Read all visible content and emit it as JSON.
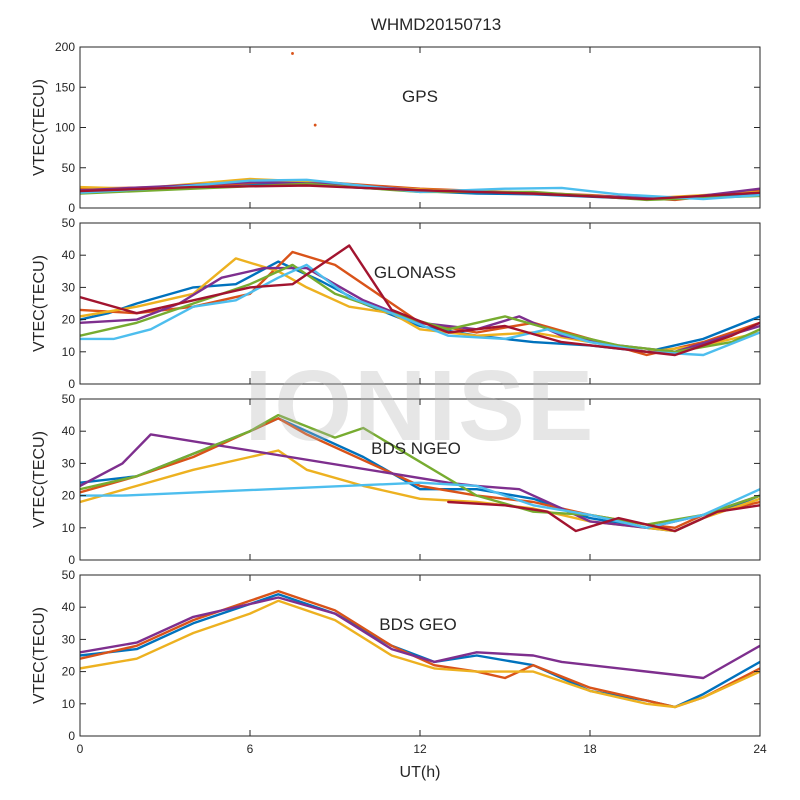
{
  "chart_data": {
    "type": "line",
    "title": "WHMD20150713",
    "xlabel": "UT(h)",
    "xlim": [
      0,
      24
    ],
    "xticks": [
      0,
      6,
      12,
      18,
      24
    ],
    "watermark": "IONISE",
    "colors": [
      "#0072BD",
      "#D95319",
      "#EDB120",
      "#7E2F8E",
      "#77AC30",
      "#4DBEEE",
      "#A2142F"
    ],
    "panels": [
      {
        "label": "GPS",
        "ylabel": "VTEC(TECU)",
        "ylim": [
          0,
          200
        ],
        "yticks": [
          0,
          50,
          100,
          150,
          200
        ],
        "outliers": [
          {
            "x": 7.5,
            "y": 192
          },
          {
            "x": 8.3,
            "y": 103
          }
        ],
        "series": [
          {
            "color": 0,
            "x": [
              0,
              2,
              4,
              6,
              8,
              10,
              12,
              14,
              16,
              18,
              20,
              22,
              24
            ],
            "y": [
              20,
              22,
              27,
              30,
              29,
              25,
              21,
              18,
              17,
              14,
              11,
              13,
              18
            ]
          },
          {
            "color": 1,
            "x": [
              0,
              3,
              5,
              7,
              9,
              12,
              15,
              18,
              21,
              24
            ],
            "y": [
              24,
              26,
              29,
              33,
              31,
              24,
              20,
              16,
              10,
              22
            ]
          },
          {
            "color": 2,
            "x": [
              0,
              2,
              4,
              6,
              8,
              10,
              12,
              16,
              20,
              24
            ],
            "y": [
              26,
              24,
              30,
              36,
              33,
              27,
              23,
              18,
              12,
              20
            ]
          },
          {
            "color": 3,
            "x": [
              0,
              3,
              6,
              9,
              12,
              15,
              18,
              21,
              24
            ],
            "y": [
              22,
              27,
              32,
              30,
              22,
              19,
              15,
              11,
              24
            ]
          },
          {
            "color": 4,
            "x": [
              0,
              4,
              8,
              12,
              16,
              20,
              24
            ],
            "y": [
              18,
              24,
              30,
              20,
              20,
              10,
              15
            ]
          },
          {
            "color": 5,
            "x": [
              0,
              3,
              6,
              8,
              12,
              15,
              17,
              19,
              22,
              24
            ],
            "y": [
              19,
              25,
              34,
              35,
              20,
              24,
              25,
              17,
              11,
              16
            ]
          },
          {
            "color": 6,
            "x": [
              0,
              4,
              8,
              12,
              16,
              20,
              24
            ],
            "y": [
              21,
              26,
              28,
              22,
              18,
              11,
              19
            ]
          }
        ]
      },
      {
        "label": "GLONASS",
        "ylabel": "VTEC(TECU)",
        "ylim": [
          0,
          50
        ],
        "yticks": [
          0,
          10,
          20,
          30,
          40,
          50
        ],
        "series": [
          {
            "color": 0,
            "x": [
              0,
              1,
              2,
              4,
              5.5,
              7,
              8.5,
              10,
              12,
              14,
              16,
              18,
              20,
              22,
              24
            ],
            "y": [
              20,
              22,
              25,
              30,
              31,
              38,
              32,
              25,
              18,
              15,
              13,
              12,
              10,
              14,
              21
            ]
          },
          {
            "color": 1,
            "x": [
              0,
              2,
              4,
              6,
              7.5,
              9,
              10.5,
              12,
              14,
              16,
              18,
              20,
              22,
              24
            ],
            "y": [
              23,
              22,
              24,
              28,
              41,
              37,
              28,
              19,
              16,
              19,
              14,
              9,
              13,
              19
            ]
          },
          {
            "color": 2,
            "x": [
              0,
              2,
              4,
              5.5,
              7,
              8,
              9.5,
              11,
              12,
              14,
              16,
              18,
              20,
              22,
              24
            ],
            "y": [
              21,
              24,
              28,
              39,
              35,
              30,
              24,
              22,
              17,
              15,
              16,
              13,
              10,
              12,
              16
            ]
          },
          {
            "color": 3,
            "x": [
              0,
              2,
              3.5,
              5,
              6.5,
              8,
              10,
              12,
              14,
              15.5,
              17,
              19,
              21,
              22.5,
              24
            ],
            "y": [
              19,
              20,
              25,
              33,
              36,
              36,
              26,
              19,
              17,
              21,
              15,
              12,
              10,
              14,
              18
            ]
          },
          {
            "color": 4,
            "x": [
              0,
              2,
              4,
              6,
              7.5,
              9,
              11,
              13,
              15,
              17,
              19,
              21,
              23,
              24
            ],
            "y": [
              15,
              19,
              25,
              31,
              37,
              28,
              22,
              17,
              21,
              16,
              12,
              10,
              13,
              17
            ]
          },
          {
            "color": 5,
            "x": [
              0,
              1.2,
              2.5,
              4,
              5.5,
              7,
              8,
              9.5,
              11,
              13,
              15,
              16.5,
              18,
              20,
              22,
              24
            ],
            "y": [
              14,
              14,
              17,
              24,
              26,
              33,
              37,
              27,
              22,
              15,
              14,
              17,
              13,
              10,
              9,
              16
            ]
          },
          {
            "color": 6,
            "x": [
              0,
              2,
              4,
              6,
              7.5,
              9.5,
              11,
              13,
              15,
              17,
              19,
              21,
              23,
              24
            ],
            "y": [
              27,
              22,
              26,
              30,
              31,
              43,
              23,
              16,
              18,
              13,
              11,
              9,
              15,
              19
            ]
          }
        ]
      },
      {
        "label": "BDS NGEO",
        "ylabel": "VTEC(TECU)",
        "ylim": [
          0,
          50
        ],
        "yticks": [
          0,
          10,
          20,
          30,
          40,
          50
        ],
        "series": [
          {
            "color": 0,
            "x": [
              0,
              2,
              4,
              6,
              7,
              8,
              10,
              12,
              14,
              16,
              18,
              20,
              21,
              22,
              24
            ],
            "y": [
              24,
              26,
              33,
              40,
              44,
              40,
              32,
              22,
              22,
              19,
              13,
              10,
              9,
              13,
              20
            ]
          },
          {
            "color": 1,
            "x": [
              0,
              2,
              4,
              6,
              7,
              8,
              10,
              12,
              14,
              16,
              18,
              20,
              21,
              22,
              24
            ],
            "y": [
              21,
              26,
              32,
              40,
              44,
              39,
              31,
              23,
              20,
              18,
              14,
              11,
              10,
              14,
              18
            ]
          },
          {
            "color": 2,
            "x": [
              0,
              2,
              4,
              6,
              7,
              8,
              10,
              12,
              14,
              16,
              18,
              20,
              21,
              22,
              24
            ],
            "y": [
              18,
              23,
              28,
              32,
              34,
              28,
              23,
              19,
              18,
              16,
              12,
              10,
              9,
              13,
              19
            ]
          },
          {
            "color": 3,
            "x": [
              0,
              1.5,
              2.5,
              13,
              14,
              15.5,
              17,
              18,
              20,
              22,
              24
            ],
            "y": [
              23,
              30,
              39,
              24,
              23,
              22,
              16,
              12,
              10,
              14,
              20
            ]
          },
          {
            "color": 4,
            "x": [
              0,
              2,
              4,
              6,
              7,
              9,
              10,
              14,
              16,
              18,
              20,
              22,
              24
            ],
            "y": [
              22,
              26,
              33,
              40,
              45,
              38,
              41,
              20,
              15,
              14,
              11,
              14,
              20
            ]
          },
          {
            "color": 5,
            "x": [
              0,
              1.5,
              12,
              14,
              16,
              18,
              20,
              22,
              24
            ],
            "y": [
              20,
              20,
              24,
              23,
              17,
              14,
              10,
              14,
              22
            ]
          },
          {
            "color": 6,
            "x": [
              13,
              15,
              16.5,
              17.5,
              19,
              21,
              22.5,
              24
            ],
            "y": [
              18,
              17,
              15,
              9,
              13,
              9,
              15,
              17
            ]
          }
        ]
      },
      {
        "label": "BDS GEO",
        "ylabel": "VTEC(TECU)",
        "ylim": [
          0,
          50
        ],
        "yticks": [
          0,
          10,
          20,
          30,
          40,
          50
        ],
        "series": [
          {
            "color": 0,
            "x": [
              0,
              2,
              4,
              6,
              7,
              9,
              11,
              12.5,
              14,
              16,
              18,
              20,
              21,
              22,
              24
            ],
            "y": [
              25,
              27,
              35,
              41,
              44,
              38,
              28,
              23,
              25,
              22,
              14,
              11,
              9,
              13,
              23
            ]
          },
          {
            "color": 1,
            "x": [
              0,
              2,
              4,
              6,
              7,
              9,
              11,
              12.5,
              14,
              15,
              16,
              18,
              20,
              21,
              22,
              24
            ],
            "y": [
              24,
              28,
              36,
              42,
              45,
              39,
              28,
              22,
              20,
              18,
              22,
              15,
              11,
              9,
              12,
              21
            ]
          },
          {
            "color": 2,
            "x": [
              0,
              2,
              4,
              6,
              7,
              9,
              11,
              12.5,
              14,
              16,
              18,
              20,
              21,
              22,
              24
            ],
            "y": [
              21,
              24,
              32,
              38,
              42,
              36,
              25,
              21,
              20,
              20,
              14,
              10,
              9,
              12,
              20
            ]
          },
          {
            "color": 3,
            "x": [
              0,
              2,
              4,
              6,
              7,
              9,
              11,
              12.5,
              14,
              16,
              17,
              22,
              24
            ],
            "y": [
              26,
              29,
              37,
              41,
              43,
              38,
              27,
              23,
              26,
              25,
              23,
              18,
              28
            ]
          }
        ]
      }
    ]
  }
}
